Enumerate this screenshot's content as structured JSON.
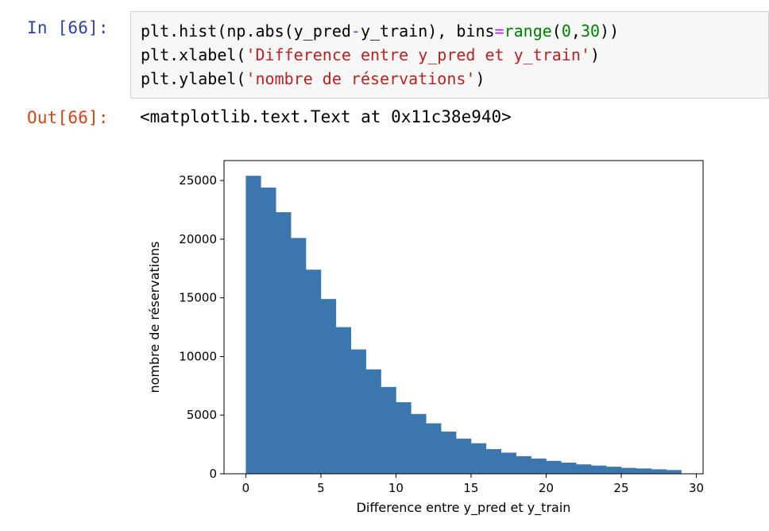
{
  "cell": {
    "in_prompt": "In [66]:",
    "out_prompt": "Out[66]:",
    "code": {
      "line1": {
        "a": "plt.hist(np.abs(y_pred",
        "op": "-",
        "b": "y_train), bins",
        "eq": "=",
        "builtin": "range",
        "p1": "(",
        "n0": "0",
        "comma": ",",
        "n30": "30",
        "close": "))"
      },
      "line2": {
        "a": "plt.xlabel(",
        "str": "'Difference entre y_pred et y_train'",
        "close": ")"
      },
      "line3": {
        "a": "plt.ylabel(",
        "str": "'nombre de réservations'",
        "close": ")"
      }
    },
    "output_text": "<matplotlib.text.Text at 0x11c38e940>"
  },
  "colors": {
    "bar": "#3c76af",
    "in_prompt": "#303f9f",
    "out_prompt": "#d84315"
  },
  "chart_data": {
    "type": "bar",
    "title": "",
    "xlabel": "Difference entre y_pred et y_train",
    "ylabel": "nombre de réservations",
    "bin_edges": [
      0,
      1,
      2,
      3,
      4,
      5,
      6,
      7,
      8,
      9,
      10,
      11,
      12,
      13,
      14,
      15,
      16,
      17,
      18,
      19,
      20,
      21,
      22,
      23,
      24,
      25,
      26,
      27,
      28,
      29
    ],
    "values": [
      25400,
      24400,
      22300,
      20100,
      17400,
      14900,
      12500,
      10600,
      8900,
      7400,
      6100,
      5100,
      4300,
      3600,
      3000,
      2600,
      2100,
      1800,
      1500,
      1300,
      1100,
      950,
      800,
      700,
      600,
      500,
      450,
      380,
      320
    ],
    "xlim": [
      -1.45,
      30.45
    ],
    "ylim": [
      0,
      26700
    ],
    "xticks": [
      0,
      5,
      10,
      15,
      20,
      25,
      30
    ],
    "yticks": [
      0,
      5000,
      10000,
      15000,
      20000,
      25000
    ],
    "grid": false
  }
}
